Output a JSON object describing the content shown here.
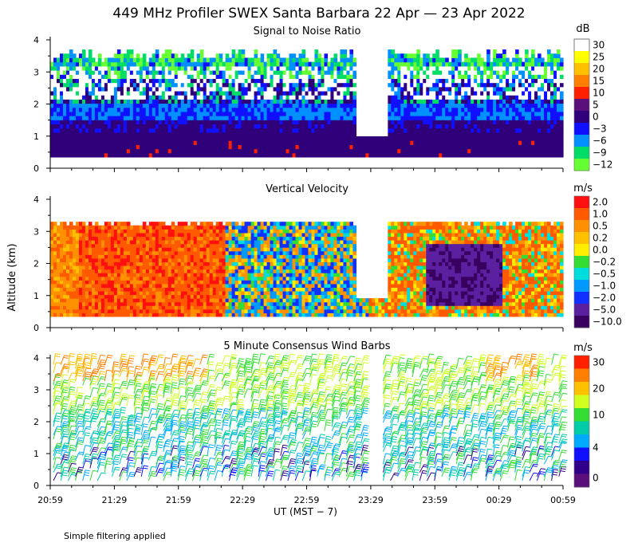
{
  "title": "449 MHz Profiler SWEX Santa Barbara 22 Apr — 23 Apr 2022",
  "footnote": "Simple filtering applied",
  "xlabel": "UT  (MST − 7)",
  "ylabel": "Altitude (km)",
  "chart_data": [
    {
      "type": "heatmap",
      "title": "Signal to Noise Ratio",
      "units": "dB",
      "x_tick_labels": [
        "20:59",
        "21:29",
        "21:59",
        "22:29",
        "22:59",
        "23:29",
        "23:59",
        "00:29",
        "00:59"
      ],
      "y_tick_labels": [
        "0",
        "1",
        "2",
        "3",
        "4"
      ],
      "ylim": [
        0,
        4
      ],
      "colorbar_labels": [
        "30",
        "25",
        "20",
        "15",
        "10",
        "5",
        "0",
        "−3",
        "−6",
        "−9",
        "−12"
      ],
      "colorbar_colors": [
        "#ffffff",
        "#ffff00",
        "#ffc000",
        "#ff8000",
        "#ff2000",
        "#5a0f7a",
        "#30007a",
        "#1010ff",
        "#0090ff",
        "#00dd66",
        "#66ff33"
      ],
      "data_range_km": [
        0.35,
        3.7
      ]
    },
    {
      "type": "heatmap",
      "title": "Vertical Velocity",
      "units": "m/s",
      "x_tick_labels": [
        "20:59",
        "21:29",
        "21:59",
        "22:29",
        "22:59",
        "23:29",
        "23:59",
        "00:29",
        "00:59"
      ],
      "y_tick_labels": [
        "0",
        "1",
        "2",
        "3",
        "4"
      ],
      "ylim": [
        0,
        4
      ],
      "colorbar_labels": [
        "2.0",
        "1.0",
        "0.5",
        "0.2",
        "0.0",
        "−0.2",
        "−0.5",
        "−1.0",
        "−2.0",
        "−5.0",
        "−10.0"
      ],
      "colorbar_colors": [
        "#ff1010",
        "#ff5a00",
        "#ff9000",
        "#ffc000",
        "#ffee00",
        "#33dd33",
        "#00dddd",
        "#0099ff",
        "#1030ff",
        "#5a20a0",
        "#3a0060"
      ],
      "data_range_km": [
        0.35,
        3.3
      ]
    },
    {
      "type": "scatter",
      "title": "5 Minute Consensus Wind Barbs",
      "units": "m/s",
      "x_tick_labels": [
        "20:59",
        "21:29",
        "21:59",
        "22:29",
        "22:59",
        "23:29",
        "23:59",
        "00:29",
        "00:59"
      ],
      "y_tick_labels": [
        "0",
        "1",
        "2",
        "3",
        "4"
      ],
      "ylim": [
        0,
        4
      ],
      "colorbar_labels": [
        "30",
        "20",
        "10",
        "4",
        "0"
      ],
      "colorbar_colors": [
        "#ff2000",
        "#ff8000",
        "#ffc000",
        "#d0ff20",
        "#33dd33",
        "#00ccaa",
        "#00aaff",
        "#1010ff",
        "#30008a",
        "#5a0f7a"
      ],
      "data_range_km": [
        0.1,
        3.9
      ]
    }
  ]
}
